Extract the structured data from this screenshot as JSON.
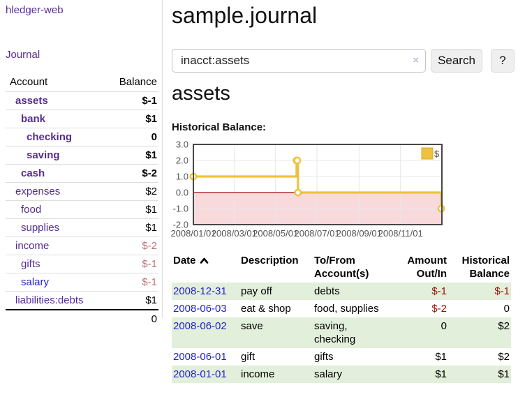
{
  "app": {
    "title": "hledger-web"
  },
  "sidebar": {
    "journal_link": "Journal",
    "table": {
      "account_header": "Account",
      "balance_header": "Balance",
      "rows": [
        {
          "account": "assets",
          "balance": "$-1",
          "depth": 1,
          "bold": true,
          "neg": "strong"
        },
        {
          "account": "bank",
          "balance": "$1",
          "depth": 2,
          "bold": true,
          "neg": "none"
        },
        {
          "account": "checking",
          "balance": "0",
          "depth": 3,
          "bold": true,
          "neg": "none"
        },
        {
          "account": "saving",
          "balance": "$1",
          "depth": 3,
          "bold": true,
          "neg": "none"
        },
        {
          "account": "cash",
          "balance": "$-2",
          "depth": 2,
          "bold": true,
          "neg": "strong"
        },
        {
          "account": "expenses",
          "balance": "$2",
          "depth": 1,
          "bold": false,
          "neg": "none"
        },
        {
          "account": "food",
          "balance": "$1",
          "depth": 2,
          "bold": false,
          "neg": "none"
        },
        {
          "account": "supplies",
          "balance": "$1",
          "depth": 2,
          "bold": false,
          "neg": "none"
        },
        {
          "account": "income",
          "balance": "$-2",
          "depth": 1,
          "bold": false,
          "neg": "soft"
        },
        {
          "account": "gifts",
          "balance": "$-1",
          "depth": 2,
          "bold": false,
          "neg": "soft"
        },
        {
          "account": "salary",
          "balance": "$-1",
          "depth": 2,
          "bold": false,
          "neg": "soft",
          "link_color": "blue"
        },
        {
          "account": "liabilities:debts",
          "balance": "$1",
          "depth": 1,
          "bold": false,
          "neg": "none"
        }
      ],
      "total": "0"
    }
  },
  "header": {
    "title": "sample.journal"
  },
  "search": {
    "value": "inacct:assets",
    "clear_icon": "×",
    "button_label": "Search",
    "help_label": "?"
  },
  "account_page": {
    "heading": "assets",
    "chart_label": "Historical Balance:"
  },
  "chart_data": {
    "type": "line",
    "step": "after",
    "title": "Historical Balance",
    "xlim": [
      "2008-01-01",
      "2009-01-01"
    ],
    "ylim": [
      -2,
      3
    ],
    "xticks": [
      "2008/01/01",
      "2008/03/01",
      "2008/05/01",
      "2008/07/01",
      "2008/09/01",
      "2008/11/01"
    ],
    "yticks": [
      "3.0",
      "2.0",
      "1.0",
      "0.0",
      "-1.0",
      "-2.0"
    ],
    "grid": true,
    "legend": {
      "label": "$",
      "position": "top-right"
    },
    "series": [
      {
        "name": "$",
        "color": "#edc240",
        "marker_fill": "#ffffff",
        "points": [
          [
            "2008-01-01",
            1
          ],
          [
            "2008-06-01",
            2
          ],
          [
            "2008-06-02",
            2
          ],
          [
            "2008-06-03",
            0
          ],
          [
            "2008-12-31",
            -1
          ]
        ]
      }
    ],
    "zero_line_color": "#a40000",
    "below_zero_fill": "#f9dadc",
    "gridline_color": "#e7e7e7",
    "border_color": "#474747",
    "legend_swatch_border": "#d3a928"
  },
  "register": {
    "headers": {
      "date": "Date",
      "description": "Description",
      "accounts": "To/From Account(s)",
      "amount": "Amount Out/In",
      "balance": "Historical Balance"
    },
    "rows": [
      {
        "date": "2008-12-31",
        "description": "pay off",
        "accounts": "debts",
        "amount": "$-1",
        "balance": "$-1",
        "amount_neg": true,
        "balance_neg": true,
        "shaded": true
      },
      {
        "date": "2008-06-03",
        "description": "eat & shop",
        "accounts": "food, supplies",
        "amount": "$-2",
        "balance": "0",
        "amount_neg": true,
        "balance_neg": false,
        "shaded": false
      },
      {
        "date": "2008-06-02",
        "description": "save",
        "accounts": "saving, checking",
        "amount": "0",
        "balance": "$2",
        "amount_neg": false,
        "balance_neg": false,
        "shaded": true
      },
      {
        "date": "2008-06-01",
        "description": "gift",
        "accounts": "gifts",
        "amount": "$1",
        "balance": "$2",
        "amount_neg": false,
        "balance_neg": false,
        "shaded": false
      },
      {
        "date": "2008-01-01",
        "description": "income",
        "accounts": "salary",
        "amount": "$1",
        "balance": "$1",
        "amount_neg": false,
        "balance_neg": false,
        "shaded": true
      }
    ]
  }
}
